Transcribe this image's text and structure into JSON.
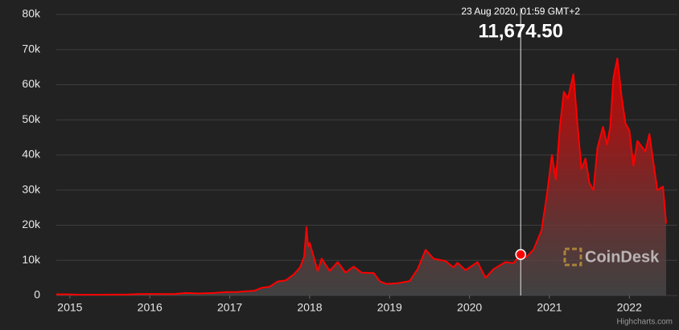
{
  "chart_data": {
    "type": "area",
    "color": "#ff0000",
    "background": "#222222",
    "grid": true,
    "xlim": [
      2014.83,
      2022.5
    ],
    "xticks": [
      2015,
      2016,
      2017,
      2018,
      2019,
      2020,
      2021,
      2022
    ],
    "ylim": [
      0,
      80000
    ],
    "yticks": [
      0,
      {
        "value": 10000,
        "label": "10k"
      },
      {
        "value": 20000,
        "label": "20k"
      },
      {
        "value": 30000,
        "label": "30k"
      },
      {
        "value": 40000,
        "label": "40k"
      },
      {
        "value": 50000,
        "label": "50k"
      },
      {
        "value": 60000,
        "label": "60k"
      },
      {
        "value": 70000,
        "label": "70k"
      },
      {
        "value": 80000,
        "label": "80k"
      }
    ],
    "x": [
      2014.83,
      2015.0,
      2015.1,
      2015.3,
      2015.5,
      2015.7,
      2015.85,
      2016.0,
      2016.3,
      2016.45,
      2016.6,
      2016.8,
      2016.95,
      2017.1,
      2017.2,
      2017.3,
      2017.4,
      2017.5,
      2017.6,
      2017.7,
      2017.8,
      2017.88,
      2017.93,
      2017.96,
      2017.98,
      2018.0,
      2018.05,
      2018.1,
      2018.15,
      2018.25,
      2018.35,
      2018.45,
      2018.55,
      2018.65,
      2018.8,
      2018.88,
      2018.96,
      2019.1,
      2019.25,
      2019.35,
      2019.45,
      2019.55,
      2019.7,
      2019.8,
      2019.85,
      2019.95,
      2020.1,
      2020.2,
      2020.3,
      2020.45,
      2020.55,
      2020.64,
      2020.7,
      2020.8,
      2020.9,
      2020.97,
      2021.03,
      2021.08,
      2021.13,
      2021.18,
      2021.23,
      2021.3,
      2021.35,
      2021.4,
      2021.45,
      2021.5,
      2021.55,
      2021.6,
      2021.67,
      2021.72,
      2021.76,
      2021.8,
      2021.85,
      2021.9,
      2021.95,
      2022.0,
      2022.05,
      2022.1,
      2022.2,
      2022.25,
      2022.3,
      2022.35,
      2022.42,
      2022.46
    ],
    "values": [
      350,
      320,
      230,
      230,
      260,
      240,
      380,
      430,
      420,
      700,
      580,
      700,
      950,
      1000,
      1200,
      1300,
      2200,
      2500,
      4000,
      4300,
      6000,
      8000,
      11000,
      19500,
      14000,
      15000,
      11000,
      7000,
      10500,
      7000,
      9500,
      6500,
      8200,
      6500,
      6400,
      4000,
      3300,
      3500,
      4100,
      7500,
      13000,
      10500,
      9800,
      8000,
      9300,
      7200,
      9500,
      5000,
      7500,
      9500,
      9200,
      11674.5,
      10700,
      13000,
      18500,
      29000,
      40000,
      33000,
      48000,
      58000,
      56000,
      63000,
      49000,
      36000,
      39000,
      32000,
      30000,
      42000,
      48000,
      43000,
      48000,
      62000,
      67500,
      57000,
      49000,
      47000,
      37000,
      44000,
      41000,
      46000,
      38000,
      30000,
      31000,
      20500
    ],
    "tooltip": {
      "date": "23 Aug 2020, 01:59 GMT+2",
      "x": 2020.64,
      "value": 11674.5,
      "value_label": "11,674.50"
    },
    "watermark": "CoinDesk",
    "credits": "Highcharts.com"
  }
}
